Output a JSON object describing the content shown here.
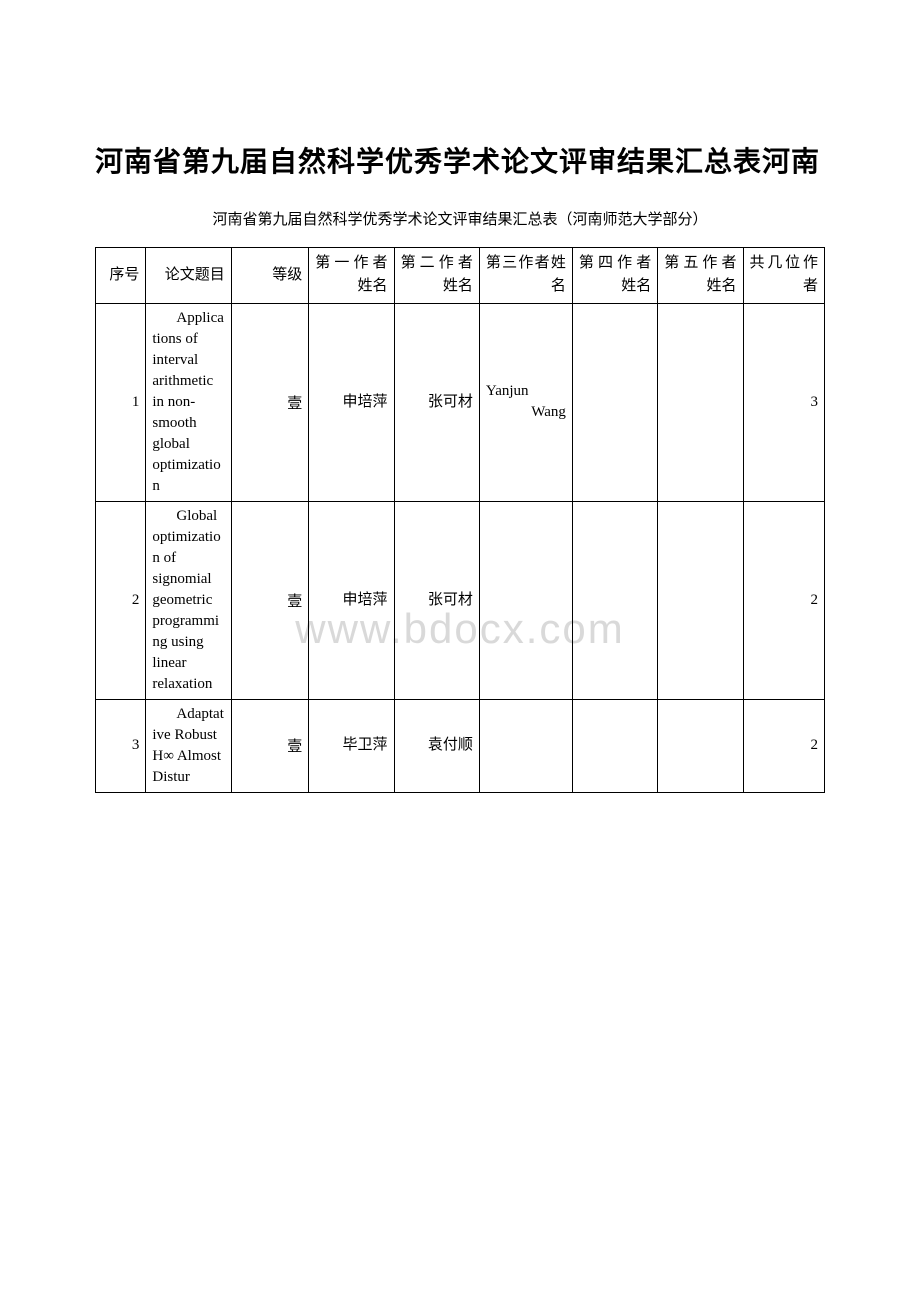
{
  "heading": "河南省第九届自然科学优秀学术论文评审结果汇总表河南",
  "subtitle": "河南省第九届自然科学优秀学术论文评审结果汇总表（河南师范大学部分）",
  "watermark": "www.bdocx.com",
  "columns": [
    "序号",
    "论文题目",
    "等级",
    "第一作者姓名",
    "第二作者姓名",
    "第三作者姓名",
    "第四作者姓名",
    "第五作者姓名",
    "共几位作者"
  ],
  "rows": [
    {
      "seq": "1",
      "title": "Applications of interval arithmetic in non-smooth global optimization",
      "grade": "壹",
      "a1": "申培萍",
      "a2": "张可材",
      "a3": "Yanjun Wang",
      "a4": "",
      "a5": "",
      "count": "3"
    },
    {
      "seq": "2",
      "title": "Global optimization of signomial geometric programming using linear relaxation",
      "grade": "壹",
      "a1": "申培萍",
      "a2": "张可材",
      "a3": "",
      "a4": "",
      "a5": "",
      "count": "2"
    },
    {
      "seq": "3",
      "title": "Adaptative Robust H∞ Almost Distur",
      "grade": "壹",
      "a1": "毕卫萍",
      "a2": "袁付顺",
      "a3": "",
      "a4": "",
      "a5": "",
      "count": "2"
    }
  ]
}
